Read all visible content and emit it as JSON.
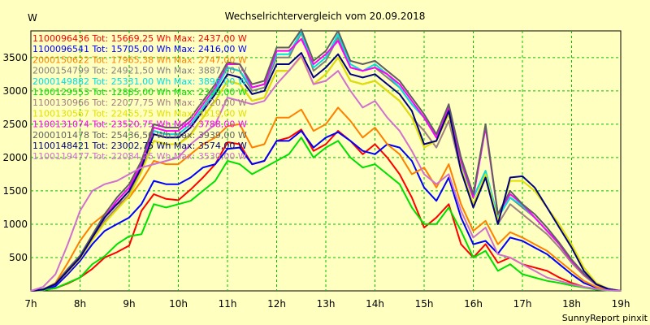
{
  "chart_data": {
    "type": "line",
    "title": "Wechselrichtervergleich vom 20.09.2018",
    "ylabel": "W",
    "xlabel": "",
    "footer": "SunnyReport pinxit",
    "ylim": [
      0,
      3900
    ],
    "xlim": [
      7.0,
      19.0
    ],
    "yticks": [
      500,
      1000,
      1500,
      2000,
      2500,
      3000,
      3500
    ],
    "xticks": [
      {
        "v": 7,
        "label": "7h"
      },
      {
        "v": 8,
        "label": "8h"
      },
      {
        "v": 9,
        "label": "9h"
      },
      {
        "v": 10,
        "label": "10h"
      },
      {
        "v": 11,
        "label": "11h"
      },
      {
        "v": 12,
        "label": "12h"
      },
      {
        "v": 13,
        "label": "13h"
      },
      {
        "v": 14,
        "label": "14h"
      },
      {
        "v": 15,
        "label": "15h"
      },
      {
        "v": 16,
        "label": "16h"
      },
      {
        "v": 17,
        "label": "17h"
      },
      {
        "v": 18,
        "label": "18h"
      },
      {
        "v": 19,
        "label": "19h"
      }
    ],
    "grid": true,
    "legend_position": "top-left",
    "x": [
      7.0,
      7.25,
      7.5,
      7.75,
      8.0,
      8.25,
      8.5,
      8.75,
      9.0,
      9.25,
      9.5,
      9.75,
      10.0,
      10.25,
      10.5,
      10.75,
      11.0,
      11.25,
      11.5,
      11.75,
      12.0,
      12.25,
      12.5,
      12.75,
      13.0,
      13.25,
      13.5,
      13.75,
      14.0,
      14.25,
      14.5,
      14.75,
      15.0,
      15.25,
      15.5,
      15.75,
      16.0,
      16.25,
      16.5,
      16.75,
      17.0,
      17.25,
      17.5,
      17.75,
      18.0,
      18.25,
      18.5,
      18.75,
      19.0
    ],
    "series": [
      {
        "name": "1100096436",
        "legend": "1100096436  Tot: 15669,25 Wh Max: 2437,00 W",
        "color": "#ff0000",
        "values": [
          0,
          10,
          40,
          110,
          200,
          330,
          500,
          580,
          680,
          1200,
          1450,
          1380,
          1360,
          1520,
          1700,
          1900,
          2230,
          2200,
          1900,
          1950,
          2250,
          2300,
          2420,
          2100,
          2200,
          2400,
          2250,
          2050,
          2200,
          2000,
          1750,
          1400,
          950,
          1100,
          1300,
          700,
          500,
          700,
          420,
          500,
          400,
          350,
          300,
          200,
          120,
          60,
          30,
          10,
          0
        ]
      },
      {
        "name": "1100096541",
        "legend": "1100096541  Tot: 15705,00 Wh Max: 2416,00 W",
        "color": "#0000ff",
        "values": [
          0,
          15,
          70,
          250,
          450,
          700,
          900,
          1000,
          1100,
          1300,
          1650,
          1600,
          1600,
          1700,
          1850,
          1900,
          2130,
          2150,
          1900,
          1950,
          2250,
          2250,
          2400,
          2150,
          2300,
          2380,
          2250,
          2100,
          2050,
          2200,
          2150,
          1950,
          1550,
          1350,
          1700,
          1100,
          700,
          750,
          560,
          800,
          750,
          650,
          550,
          400,
          250,
          120,
          50,
          15,
          0
        ]
      },
      {
        "name": "2000150622",
        "legend": "2000150622  Tot: 17965,38 Wh Max: 2747,00 W",
        "color": "#ff8000",
        "values": [
          0,
          20,
          120,
          420,
          750,
          1000,
          1150,
          1300,
          1400,
          1650,
          1950,
          1900,
          1900,
          2050,
          2200,
          2300,
          2470,
          2500,
          2150,
          2200,
          2600,
          2600,
          2720,
          2400,
          2500,
          2750,
          2550,
          2300,
          2450,
          2200,
          2050,
          1750,
          1850,
          1550,
          1900,
          1300,
          900,
          1050,
          700,
          880,
          800,
          700,
          600,
          450,
          300,
          150,
          60,
          15,
          0
        ]
      },
      {
        "name": "2000154799",
        "legend": "2000154799  Tot: 24921,50 Wh Max: 3887,00 W",
        "color": "#808080",
        "values": [
          0,
          20,
          100,
          300,
          500,
          800,
          1100,
          1350,
          1550,
          1900,
          2400,
          2350,
          2350,
          2500,
          2750,
          3000,
          3350,
          3300,
          3000,
          3050,
          3500,
          3500,
          3870,
          3300,
          3450,
          3800,
          3350,
          3300,
          3350,
          3200,
          3050,
          2800,
          2600,
          2300,
          2700,
          1900,
          1400,
          1800,
          1100,
          1400,
          1250,
          1100,
          900,
          700,
          450,
          250,
          100,
          30,
          0
        ]
      },
      {
        "name": "2000149882",
        "legend": "2000149882  Tot: 25331,00 Wh Max: 3896,00 W",
        "color": "#00e0e0",
        "values": [
          0,
          20,
          100,
          300,
          500,
          800,
          1100,
          1350,
          1550,
          1900,
          2400,
          2350,
          2350,
          2500,
          2750,
          3000,
          3350,
          3300,
          3050,
          3100,
          3550,
          3550,
          3890,
          3350,
          3500,
          3850,
          3400,
          3300,
          3400,
          3250,
          3050,
          2800,
          2600,
          2350,
          2750,
          1900,
          1400,
          1800,
          1100,
          1400,
          1280,
          1100,
          900,
          700,
          450,
          250,
          100,
          30,
          0
        ]
      },
      {
        "name": "1100129553",
        "legend": "1100129553  Tot: 12885,00 Wh Max: 2329,00 W",
        "color": "#00e000",
        "values": [
          0,
          10,
          40,
          120,
          200,
          400,
          520,
          700,
          820,
          850,
          1300,
          1250,
          1300,
          1350,
          1500,
          1650,
          1950,
          1900,
          1750,
          1850,
          1950,
          2050,
          2300,
          2000,
          2150,
          2250,
          2000,
          1850,
          1900,
          1750,
          1600,
          1250,
          1000,
          1000,
          1250,
          900,
          500,
          600,
          300,
          400,
          250,
          200,
          150,
          120,
          80,
          50,
          20,
          5,
          0
        ]
      },
      {
        "name": "1100130966",
        "legend": "1100130966  Tot: 22077,75 Wh Max: 3520,00 W",
        "color": "#a08080",
        "values": [
          0,
          20,
          100,
          300,
          500,
          800,
          1050,
          1250,
          1450,
          1800,
          2250,
          2200,
          2200,
          2350,
          2600,
          2850,
          3150,
          3100,
          2850,
          2900,
          3300,
          3300,
          3520,
          3100,
          3250,
          3500,
          3150,
          3100,
          3150,
          3000,
          2850,
          2600,
          2400,
          2150,
          2550,
          1800,
          1300,
          1700,
          1000,
          1300,
          1150,
          1000,
          850,
          650,
          420,
          230,
          90,
          25,
          0
        ]
      },
      {
        "name": "1100130567",
        "legend": "1100130567  Tot: 22455,75 Wh Max: 3519,00 W",
        "color": "#e0e000",
        "values": [
          0,
          20,
          100,
          280,
          480,
          760,
          1020,
          1220,
          1420,
          1780,
          2250,
          2200,
          2200,
          2330,
          2600,
          2850,
          3150,
          3100,
          2850,
          2900,
          3300,
          3300,
          3510,
          3100,
          3250,
          3500,
          3150,
          3100,
          3150,
          3000,
          2850,
          2600,
          2150,
          2250,
          2650,
          1850,
          1300,
          1750,
          1050,
          1650,
          1650,
          1500,
          1250,
          1000,
          700,
          350,
          120,
          30,
          0
        ]
      },
      {
        "name": "1100131074",
        "legend": "1100131074  Tot: 23520,75 Wh Max: 3788,00 W",
        "color": "#ff00ff",
        "values": [
          0,
          20,
          100,
          300,
          500,
          800,
          1100,
          1350,
          1550,
          1900,
          2450,
          2400,
          2400,
          2550,
          2800,
          3050,
          3400,
          3400,
          3050,
          3100,
          3600,
          3600,
          3780,
          3400,
          3550,
          3750,
          3350,
          3300,
          3350,
          3250,
          3100,
          2850,
          2600,
          2300,
          2750,
          1950,
          1400,
          2450,
          1150,
          1450,
          1300,
          1100,
          900,
          700,
          450,
          250,
          100,
          30,
          0
        ]
      },
      {
        "name": "2000101478",
        "legend": "2000101478  Tot: 25436,50 Wh Max: 3939,00 W",
        "color": "#606060",
        "values": [
          0,
          25,
          110,
          330,
          530,
          840,
          1150,
          1400,
          1600,
          1950,
          2500,
          2450,
          2450,
          2600,
          2850,
          3100,
          3430,
          3400,
          3100,
          3150,
          3650,
          3650,
          3920,
          3450,
          3600,
          3900,
          3450,
          3400,
          3450,
          3300,
          3150,
          2900,
          2650,
          2350,
          2800,
          2000,
          1450,
          2500,
          1150,
          1500,
          1300,
          1150,
          950,
          720,
          470,
          260,
          100,
          30,
          0
        ]
      },
      {
        "name": "1100148421",
        "legend": "1100148421  Tot: 23002,75 Wh Max: 3574,00 W",
        "color": "#000080",
        "values": [
          0,
          20,
          100,
          300,
          500,
          800,
          1100,
          1300,
          1500,
          1850,
          2350,
          2300,
          2300,
          2450,
          2700,
          2950,
          3250,
          3200,
          2950,
          3000,
          3400,
          3400,
          3570,
          3200,
          3350,
          3550,
          3250,
          3200,
          3250,
          3100,
          2950,
          2700,
          2200,
          2250,
          2700,
          1800,
          1250,
          1700,
          1000,
          1700,
          1720,
          1550,
          1250,
          950,
          650,
          300,
          100,
          25,
          0
        ]
      },
      {
        "name": "1100119477",
        "legend": "1100119477  Tot: 22084,25 Wh Max: 3530,00 W",
        "color": "#d070d0",
        "values": [
          0,
          60,
          250,
          700,
          1200,
          1500,
          1600,
          1650,
          1750,
          1850,
          1900,
          1950,
          2000,
          2200,
          2350,
          2500,
          2900,
          2850,
          2800,
          2850,
          3100,
          3300,
          3530,
          3100,
          3150,
          3300,
          3000,
          2750,
          2850,
          2600,
          2400,
          2100,
          1750,
          1600,
          1750,
          1200,
          800,
          950,
          550,
          500,
          400,
          300,
          200,
          150,
          100,
          60,
          30,
          10,
          0
        ]
      }
    ]
  }
}
